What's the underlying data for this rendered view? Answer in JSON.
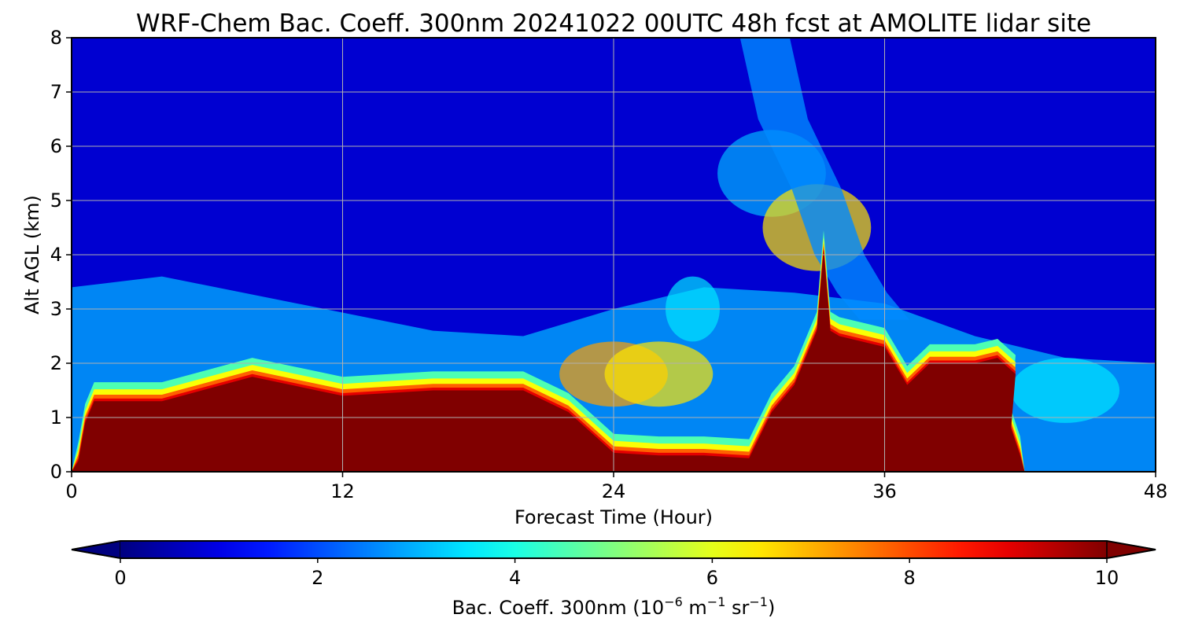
{
  "chart_data": {
    "type": "heatmap",
    "title": "WRF-Chem Bac. Coeff. 300nm  20241022 00UTC 48h fcst at AMOLITE lidar site",
    "xlabel": "Forecast Time (Hour)",
    "ylabel": "Alt AGL (km)",
    "xlim": [
      0,
      48
    ],
    "ylim": [
      0,
      8
    ],
    "xticks": [
      "0",
      "12",
      "24",
      "36",
      "48"
    ],
    "yticks": [
      "0",
      "1",
      "2",
      "3",
      "4",
      "5",
      "6",
      "7",
      "8"
    ],
    "grid": true,
    "colormap": "jet",
    "colorbar": {
      "label_main": "Bac. Coeff. 300nm  (10",
      "label_exp1": "−6",
      "label_mid": " m",
      "label_exp2": "−1",
      "label_mid2": " sr",
      "label_exp3": "−1",
      "label_end": ")",
      "range": [
        0,
        10
      ],
      "ticks": [
        "0",
        "2",
        "4",
        "6",
        "8",
        "10"
      ],
      "extend": "both",
      "orientation": "horizontal"
    },
    "features": {
      "layer_top_km": [
        [
          0,
          0
        ],
        [
          0.3,
          0.2
        ],
        [
          0.6,
          0.9
        ],
        [
          1,
          1.3
        ],
        [
          4,
          1.3
        ],
        [
          8,
          1.75
        ],
        [
          12,
          1.4
        ],
        [
          16,
          1.5
        ],
        [
          20,
          1.5
        ],
        [
          22,
          1.1
        ],
        [
          24,
          0.35
        ],
        [
          26,
          0.3
        ],
        [
          28,
          0.3
        ],
        [
          30,
          0.25
        ],
        [
          31,
          1.1
        ],
        [
          32,
          1.6
        ],
        [
          33,
          2.6
        ],
        [
          33.3,
          4.1
        ],
        [
          33.6,
          2.6
        ],
        [
          34,
          2.5
        ],
        [
          36,
          2.3
        ],
        [
          37,
          1.6
        ],
        [
          38,
          2.0
        ],
        [
          40,
          2.0
        ],
        [
          41,
          2.1
        ],
        [
          41.8,
          1.8
        ],
        [
          41.6,
          0.8
        ],
        [
          42,
          0.3
        ],
        [
          42.2,
          0
        ]
      ],
      "elevated_aerosol_km": [
        [
          24,
          1.8,
          7.2
        ],
        [
          26,
          1.8,
          6.5
        ],
        [
          27.5,
          3.0,
          3.5
        ],
        [
          31,
          5.5,
          3.0
        ],
        [
          33,
          4.5,
          6.5
        ],
        [
          44,
          1.5,
          3.5
        ]
      ],
      "plume_band_km": [
        [
          30.2,
          8
        ],
        [
          31,
          6.5
        ],
        [
          32.5,
          5.2
        ],
        [
          33.5,
          4.0
        ],
        [
          34.5,
          3.3
        ],
        [
          35.5,
          2.8
        ]
      ],
      "background_value": 0.8,
      "pbl_diffuse_value": 3.0
    }
  }
}
